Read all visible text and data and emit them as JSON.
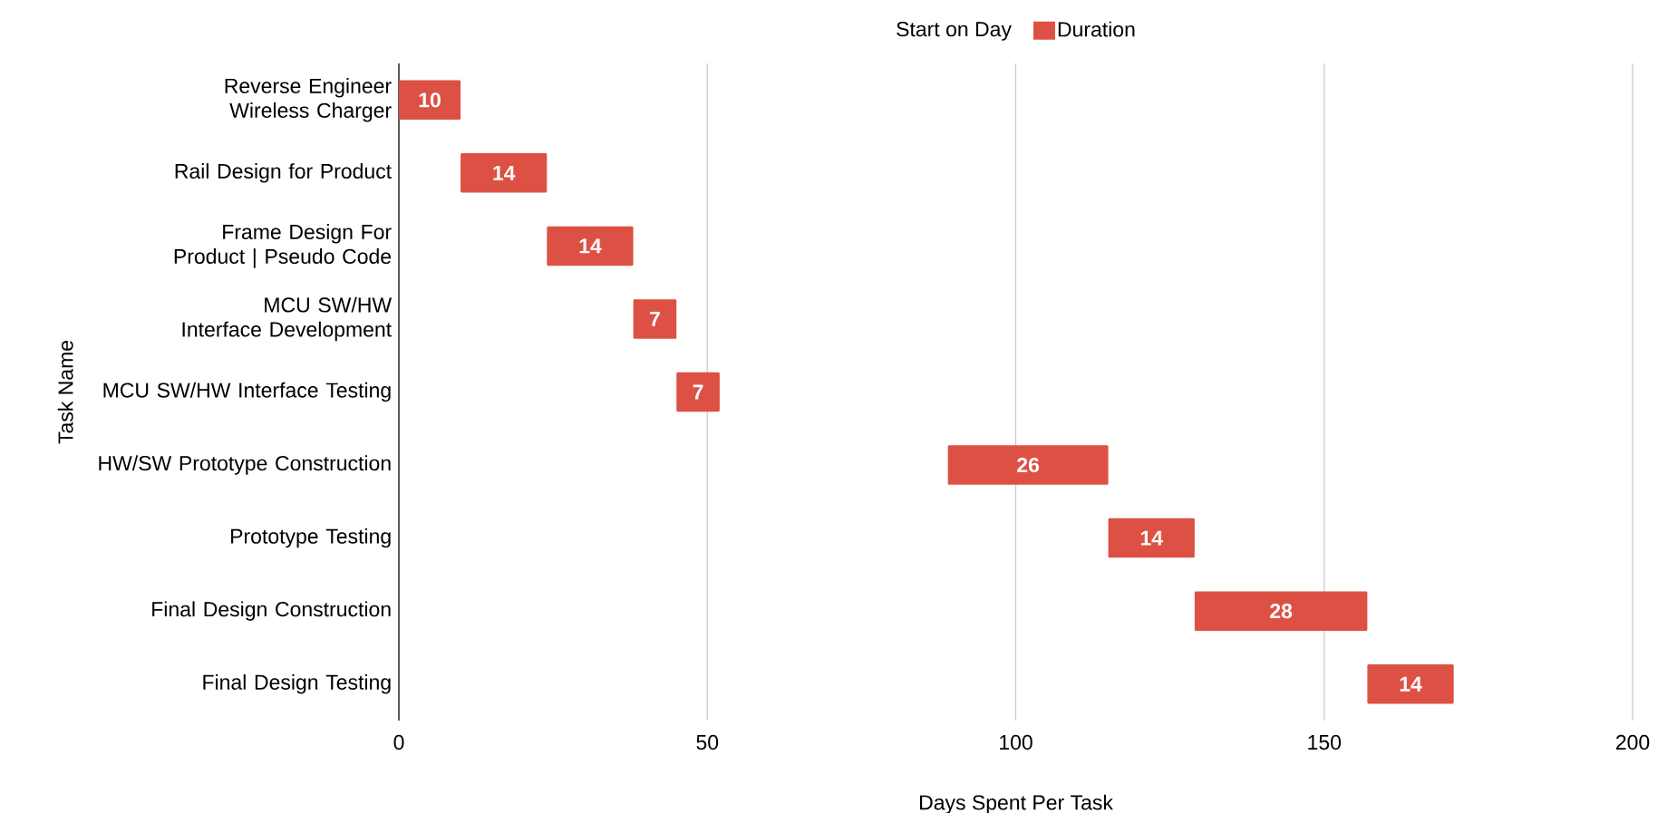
{
  "chart_data": {
    "type": "bar",
    "orientation": "horizontal",
    "xlabel": "Days Spent Per Task",
    "ylabel": "Task Name",
    "categories": [
      "Reverse Engineer Wireless Charger",
      "Rail Design for Product",
      "Frame Design For Product | Pseudo Code",
      "MCU SW/HW Interface Development",
      "MCU SW/HW Interface Testing",
      "HW/SW Prototype Construction",
      "Prototype Testing",
      "Final Design Construction",
      "Final Design Testing"
    ],
    "legend_title": "Start on Day",
    "series": [
      {
        "name": "Duration",
        "color": "#dd5144",
        "base": [
          0,
          10,
          24,
          38,
          45,
          89,
          115,
          129,
          157
        ],
        "values": [
          10,
          14,
          14,
          7,
          7,
          26,
          14,
          28,
          14
        ]
      }
    ],
    "data_labels": true,
    "xlim": [
      0,
      200
    ],
    "xticks": [
      0,
      50,
      100,
      150,
      200
    ],
    "grid": "x",
    "legend": "top"
  }
}
